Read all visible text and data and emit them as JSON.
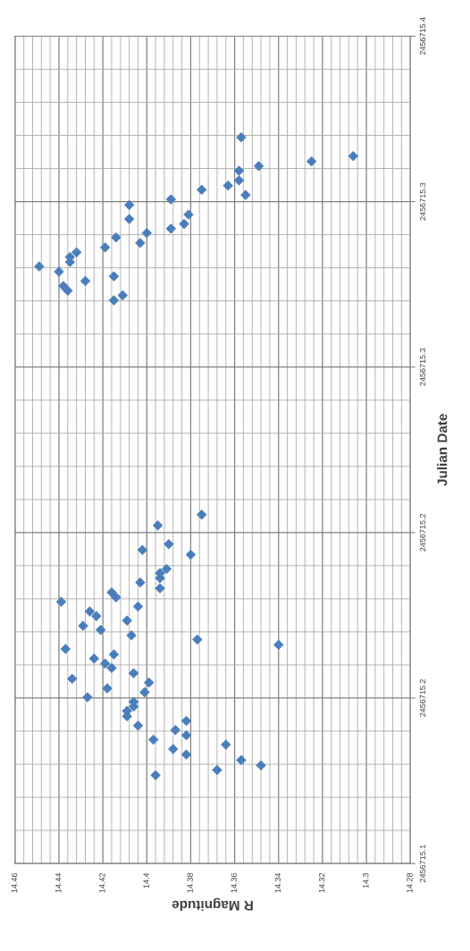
{
  "chart_data": {
    "type": "scatter",
    "xlabel": "R Magnitude",
    "ylabel": "Julian Date",
    "x": [
      14.375,
      14.395,
      14.39,
      14.402,
      14.38,
      14.391,
      14.394,
      14.394,
      14.403,
      14.394,
      14.439,
      14.416,
      14.414,
      14.404,
      14.426,
      14.423,
      14.409,
      14.429,
      14.421,
      14.407,
      14.377,
      14.34,
      14.437,
      14.415,
      14.424,
      14.419,
      14.416,
      14.406,
      14.434,
      14.399,
      14.418,
      14.401,
      14.427,
      14.406,
      14.406,
      14.409,
      14.409,
      14.404,
      14.382,
      14.387,
      14.382,
      14.397,
      14.364,
      14.388,
      14.382,
      14.357,
      14.348,
      14.368,
      14.396,
      14.357,
      14.306,
      14.325,
      14.349,
      14.358,
      14.358,
      14.363,
      14.355,
      14.375,
      14.389,
      14.408,
      14.408,
      14.381,
      14.383,
      14.389,
      14.4,
      14.403,
      14.414,
      14.419,
      14.432,
      14.435,
      14.435,
      14.449,
      14.44,
      14.438,
      14.436,
      14.428,
      14.415,
      14.411,
      14.415
    ],
    "values": [
      2456715.2265,
      2456715.2226,
      2456715.2158,
      2456715.2137,
      2456715.212,
      2456715.2068,
      2456715.2053,
      2456715.2035,
      2456715.2019,
      2456715.1998,
      2456715.1949,
      2456715.1983,
      2456715.1965,
      2456715.1932,
      2456715.1914,
      2456715.1897,
      2456715.1881,
      2456715.1862,
      2456715.1847,
      2456715.1827,
      2456715.1812,
      2456715.1793,
      2456715.1778,
      2456715.1758,
      2456715.1743,
      2456715.1725,
      2456715.1709,
      2456715.169,
      2456715.167,
      2456715.1656,
      2456715.1635,
      2456715.1621,
      2456715.1603,
      2456715.1586,
      2456715.1569,
      2456715.1553,
      2456715.1534,
      2456715.15,
      2456715.1517,
      2456715.1484,
      2456715.1465,
      2456715.1449,
      2456715.1431,
      2456715.1415,
      2456715.1395,
      2456715.1375,
      2456715.1356,
      2456715.1339,
      2456715.132,
      2456715.3633,
      2456715.3565,
      2456715.3546,
      2456715.3529,
      2456715.3512,
      2456715.3477,
      2456715.3458,
      2456715.3424,
      2456715.3443,
      2456715.3408,
      2456715.3388,
      2456715.3337,
      2456715.3353,
      2456715.3319,
      2456715.3302,
      2456715.3286,
      2456715.325,
      2456715.327,
      2456715.3234,
      2456715.3216,
      2456715.3199,
      2456715.3181,
      2456715.3165,
      2456715.3146,
      2456715.3094,
      2456715.3077,
      2456715.3112,
      2456715.3129,
      2456715.306,
      2456715.3042
    ],
    "color": "#4a7ebb",
    "marker": "diamond",
    "grid": true,
    "xlim": [
      14.46,
      14.28
    ],
    "xticks": [
      14.46,
      14.44,
      14.42,
      14.4,
      14.38,
      14.36,
      14.34,
      14.32,
      14.3,
      14.28
    ],
    "ylim": [
      2456715.1,
      2456715.4
    ],
    "yticks": [
      {
        "value": 2456715.1,
        "label": "2456715.1"
      },
      {
        "value": 2456715.16,
        "label": "2456715.2"
      },
      {
        "value": 2456715.22,
        "label": "2456715.2"
      },
      {
        "value": 2456715.28,
        "label": "2456715.3"
      },
      {
        "value": 2456715.34,
        "label": "2456715.3"
      },
      {
        "value": 2456715.4,
        "label": "2456715.4"
      }
    ]
  }
}
